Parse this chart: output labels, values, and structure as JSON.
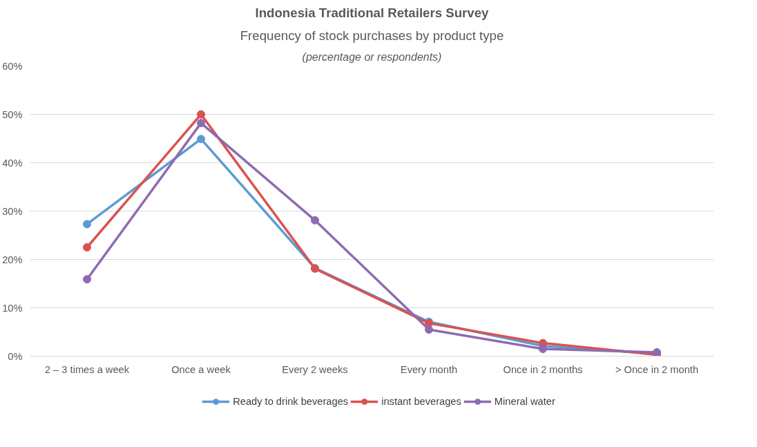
{
  "chart_data": {
    "type": "line",
    "title": "Indonesia Traditional Retailers Survey",
    "subtitle": "Frequency of stock purchases by product type",
    "annotations": [
      "(percentage or respondents)"
    ],
    "categories": [
      "2 – 3 times a week",
      "Once a week",
      "Every 2 weeks",
      "Every month",
      "Once in 2 months",
      "> Once in 2 month"
    ],
    "series": [
      {
        "name": "Ready to drink beverages",
        "color": "#5b9bd5",
        "values": [
          27.3,
          44.9,
          18.2,
          7.1,
          2.1,
          0.5
        ]
      },
      {
        "name": "instant beverages",
        "color": "#d9534f",
        "values": [
          22.5,
          50,
          18.1,
          6.8,
          2.7,
          0.3
        ]
      },
      {
        "name": "Mineral water",
        "color": "#8e6bb0",
        "values": [
          15.9,
          48.2,
          28.1,
          5.5,
          1.5,
          0.8
        ]
      }
    ],
    "ylim": [
      0,
      60
    ],
    "yticks": [
      {
        "value": 0,
        "label": "0%"
      },
      {
        "value": 10,
        "label": "10%"
      },
      {
        "value": 20,
        "label": "20%"
      },
      {
        "value": 30,
        "label": "30%"
      },
      {
        "value": 40,
        "label": "40%"
      },
      {
        "value": 50,
        "label": "50%"
      },
      {
        "value": 60,
        "label": "60%"
      }
    ],
    "grid": "y",
    "legend": "bottom",
    "marker": "circle",
    "line_style": "solid"
  }
}
